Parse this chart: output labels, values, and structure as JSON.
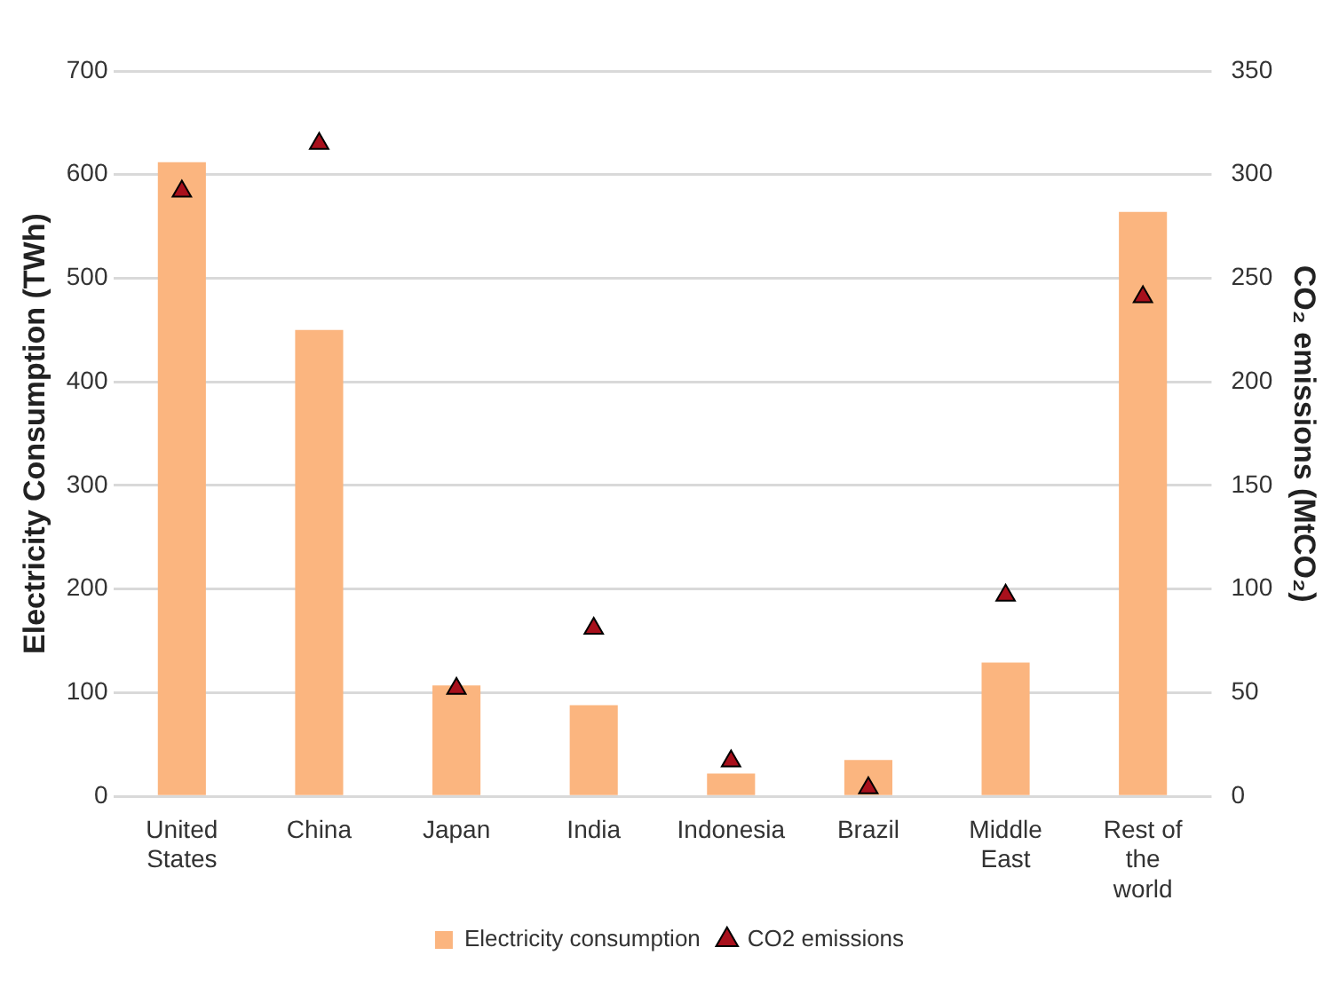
{
  "chart_data": {
    "type": "bar",
    "categories": [
      "United States",
      "China",
      "Japan",
      "India",
      "Indonesia",
      "Brazil",
      "Middle East",
      "Rest of the world"
    ],
    "series": [
      {
        "name": "Electricity consumption",
        "color": "#fbb57f",
        "values": [
          612,
          450,
          107,
          88,
          22,
          35,
          129,
          564
        ]
      },
      {
        "name": "CO2 emissions",
        "type": "scatter",
        "axis": "y2",
        "color": "#a8101c",
        "marker": "triangle",
        "values": [
          292,
          315,
          52,
          81,
          17,
          4,
          97,
          241
        ]
      }
    ],
    "ylabel": "Electricity Consumption (TWh)",
    "y2label": "CO₂ emissions (MtCO₂)",
    "ylim": [
      0,
      700
    ],
    "yticks": [
      0,
      100,
      200,
      300,
      400,
      500,
      600,
      700
    ],
    "y2lim": [
      0,
      350
    ],
    "y2ticks": [
      0,
      50,
      100,
      150,
      200,
      250,
      300,
      350
    ],
    "grid": "y",
    "legend": "bottom"
  }
}
